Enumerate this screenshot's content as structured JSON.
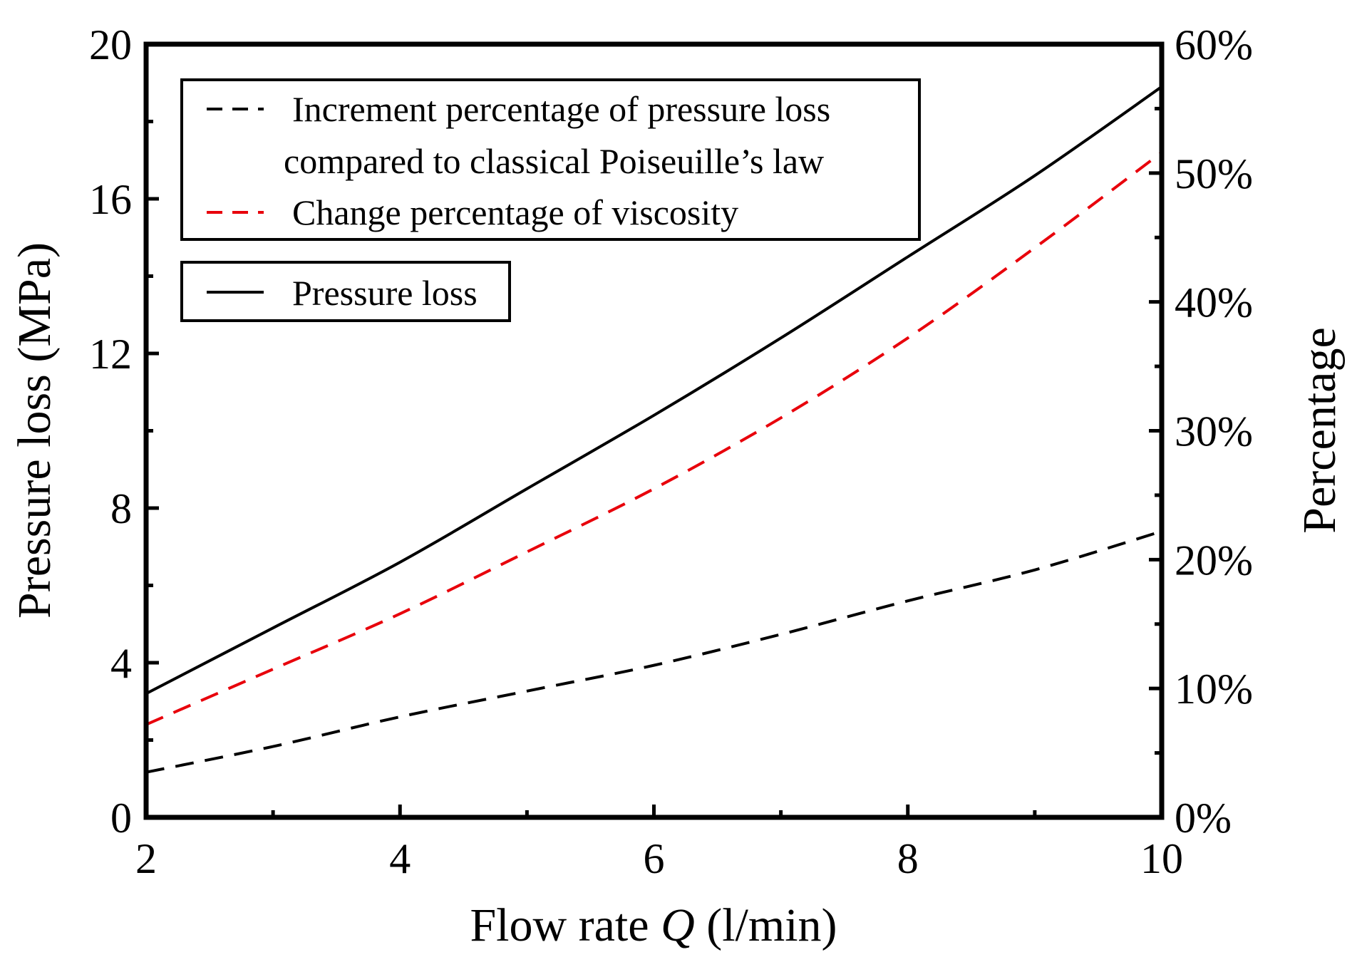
{
  "chart_data": {
    "type": "line",
    "xlabel": "Flow rate",
    "xlabel_var": "Q",
    "xlabel_unit": "(l/min)",
    "ylabel": "Pressure loss (MPa)",
    "y2label": "Percentage",
    "xlim": [
      2,
      10
    ],
    "ylim": [
      0,
      20
    ],
    "y2lim": [
      0,
      60
    ],
    "x_ticks": [
      2,
      4,
      6,
      8,
      10
    ],
    "x_tick_labels": [
      "2",
      "4",
      "6",
      "8",
      "10"
    ],
    "y_ticks": [
      0,
      4,
      8,
      12,
      16,
      20
    ],
    "y_tick_labels": [
      "0",
      "4",
      "8",
      "12",
      "16",
      "20"
    ],
    "y2_ticks": [
      0,
      10,
      20,
      30,
      40,
      50,
      60
    ],
    "y2_tick_labels": [
      "0%",
      "10%",
      "20%",
      "30%",
      "40%",
      "50%",
      "60%"
    ],
    "grid": false,
    "legend_groups": [
      {
        "position": "top-left",
        "entries": [
          {
            "line1": "Increment percentage of pressure loss",
            "line2": "compared to classical Poiseuille’s law",
            "color": "#000000",
            "dash": "dashed"
          },
          {
            "line1": "Change percentage of viscosity",
            "line2": "",
            "color": "#e8000b",
            "dash": "dashed"
          }
        ]
      },
      {
        "position": "upper-left",
        "entries": [
          {
            "line1": "Pressure loss",
            "line2": "",
            "color": "#000000",
            "dash": "solid"
          }
        ]
      }
    ],
    "series": [
      {
        "name": "Pressure loss",
        "axis": "left",
        "color": "#000000",
        "dash": "solid",
        "x": [
          2,
          3,
          4,
          5,
          6,
          7,
          8,
          9,
          10
        ],
        "values": [
          3.2,
          4.9,
          6.6,
          8.5,
          10.4,
          12.4,
          14.5,
          16.6,
          18.9
        ]
      },
      {
        "name": "Change percentage of viscosity",
        "axis": "right",
        "color": "#e8000b",
        "dash": "dashed",
        "x": [
          2,
          3,
          4,
          5,
          6,
          7,
          8,
          9,
          10
        ],
        "values": [
          7.2,
          11.5,
          15.8,
          20.6,
          25.5,
          31.0,
          37.2,
          44.2,
          51.6
        ]
      },
      {
        "name": "Increment percentage of pressure loss compared to classical Poiseuille’s law",
        "axis": "right",
        "color": "#000000",
        "dash": "dashed",
        "x": [
          2,
          3,
          4,
          5,
          6,
          7,
          8,
          9,
          10
        ],
        "values": [
          3.5,
          5.5,
          7.8,
          9.8,
          11.8,
          14.2,
          16.8,
          19.2,
          22.2
        ]
      }
    ]
  }
}
